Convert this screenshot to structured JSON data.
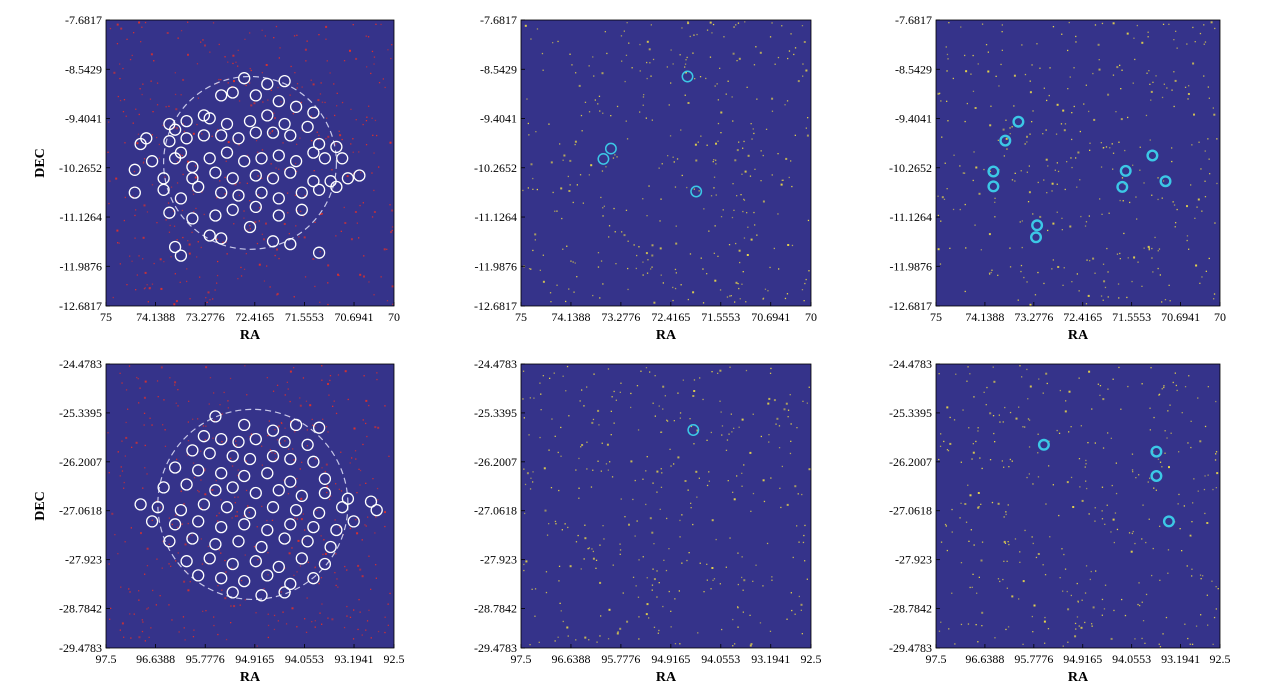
{
  "colors": {
    "background": "#35338a",
    "noise_red": "#e0302a",
    "noise_yellow": "#e8d64a",
    "star_circle": "#ffffff",
    "match_circle": "#3cc8e6",
    "fov_dashed": "#c8c8e8"
  },
  "chart_data": [
    {
      "id": "top-left",
      "type": "scatter",
      "xlabel": "RA",
      "ylabel": "DEC",
      "xlim": [
        75,
        70
      ],
      "ylim": [
        -12.6817,
        -7.6817
      ],
      "xticks": [
        75,
        74.1388,
        73.2776,
        72.4165,
        71.5553,
        70.6941,
        70
      ],
      "xtick_labels": [
        "75",
        "74.1388",
        "73.2776",
        "72.4165",
        "71.5553",
        "70.6941",
        "70"
      ],
      "yticks": [
        -7.6817,
        -8.5429,
        -9.4041,
        -10.2652,
        -11.1264,
        -11.9876,
        -12.6817
      ],
      "ytick_labels": [
        "-7.6817",
        "-8.5429",
        "-9.4041",
        "-10.2652",
        "-11.1264",
        "-11.9876",
        "-12.6817"
      ],
      "noise_color": "red",
      "fov": {
        "center": [
          72.5,
          -10.18
        ],
        "radius_ra": 1.5
      },
      "circle_style": "white",
      "points": [
        [
          72.6,
          -8.7
        ],
        [
          72.2,
          -8.8
        ],
        [
          71.9,
          -8.75
        ],
        [
          73.0,
          -9.0
        ],
        [
          72.8,
          -8.95
        ],
        [
          72.4,
          -9.0
        ],
        [
          72.0,
          -9.1
        ],
        [
          71.7,
          -9.2
        ],
        [
          71.4,
          -9.3
        ],
        [
          73.3,
          -9.35
        ],
        [
          73.6,
          -9.45
        ],
        [
          73.9,
          -9.5
        ],
        [
          73.8,
          -9.6
        ],
        [
          73.2,
          -9.4
        ],
        [
          72.9,
          -9.5
        ],
        [
          72.5,
          -9.45
        ],
        [
          72.2,
          -9.35
        ],
        [
          71.9,
          -9.5
        ],
        [
          71.5,
          -9.55
        ],
        [
          74.3,
          -9.75
        ],
        [
          74.4,
          -9.85
        ],
        [
          73.9,
          -9.8
        ],
        [
          73.6,
          -9.75
        ],
        [
          73.3,
          -9.7
        ],
        [
          73.0,
          -9.7
        ],
        [
          72.7,
          -9.75
        ],
        [
          72.4,
          -9.65
        ],
        [
          72.1,
          -9.65
        ],
        [
          71.8,
          -9.7
        ],
        [
          71.3,
          -9.85
        ],
        [
          71.0,
          -9.9
        ],
        [
          74.2,
          -10.15
        ],
        [
          73.8,
          -10.1
        ],
        [
          73.7,
          -10.0
        ],
        [
          73.5,
          -10.25
        ],
        [
          73.2,
          -10.1
        ],
        [
          72.9,
          -10.0
        ],
        [
          72.6,
          -10.15
        ],
        [
          72.3,
          -10.1
        ],
        [
          72.0,
          -10.05
        ],
        [
          71.7,
          -10.15
        ],
        [
          71.4,
          -10.0
        ],
        [
          71.2,
          -10.1
        ],
        [
          70.9,
          -10.1
        ],
        [
          74.5,
          -10.3
        ],
        [
          74.0,
          -10.45
        ],
        [
          73.5,
          -10.45
        ],
        [
          73.1,
          -10.35
        ],
        [
          72.8,
          -10.45
        ],
        [
          72.4,
          -10.4
        ],
        [
          72.1,
          -10.45
        ],
        [
          71.8,
          -10.35
        ],
        [
          71.4,
          -10.5
        ],
        [
          71.1,
          -10.5
        ],
        [
          70.8,
          -10.45
        ],
        [
          70.6,
          -10.4
        ],
        [
          74.5,
          -10.7
        ],
        [
          74.0,
          -10.65
        ],
        [
          73.7,
          -10.8
        ],
        [
          73.4,
          -10.6
        ],
        [
          73.0,
          -10.7
        ],
        [
          72.7,
          -10.75
        ],
        [
          72.3,
          -10.7
        ],
        [
          72.0,
          -10.8
        ],
        [
          71.6,
          -10.7
        ],
        [
          71.3,
          -10.65
        ],
        [
          71.0,
          -10.6
        ],
        [
          73.9,
          -11.05
        ],
        [
          73.5,
          -11.15
        ],
        [
          73.1,
          -11.1
        ],
        [
          72.8,
          -11.0
        ],
        [
          72.4,
          -10.95
        ],
        [
          72.0,
          -11.1
        ],
        [
          71.6,
          -11.0
        ],
        [
          73.2,
          -11.45
        ],
        [
          73.0,
          -11.5
        ],
        [
          72.5,
          -11.3
        ],
        [
          72.1,
          -11.55
        ],
        [
          71.8,
          -11.6
        ],
        [
          71.3,
          -11.75
        ],
        [
          73.8,
          -11.65
        ],
        [
          73.7,
          -11.8
        ]
      ]
    },
    {
      "id": "top-middle",
      "type": "scatter",
      "xlabel": "RA",
      "ylabel": "",
      "xlim": [
        75,
        70
      ],
      "ylim": [
        -12.6817,
        -7.6817
      ],
      "xticks": [
        75,
        74.1388,
        73.2776,
        72.4165,
        71.5553,
        70.6941,
        70
      ],
      "xtick_labels": [
        "75",
        "74.1388",
        "73.2776",
        "72.4165",
        "71.5553",
        "70.6941",
        "70"
      ],
      "yticks": [
        -7.6817,
        -8.5429,
        -9.4041,
        -10.2652,
        -11.1264,
        -11.9876,
        -12.6817
      ],
      "ytick_labels": [
        "-7.6817",
        "-8.5429",
        "-9.4041",
        "-10.2652",
        "-11.1264",
        "-11.9876",
        "-12.6817"
      ],
      "noise_color": "yellow",
      "circle_style": "cyan",
      "points": [
        [
          72.13,
          -8.67
        ],
        [
          73.45,
          -9.93
        ],
        [
          73.58,
          -10.11
        ],
        [
          71.98,
          -10.68
        ]
      ]
    },
    {
      "id": "top-right",
      "type": "scatter",
      "xlabel": "RA",
      "ylabel": "",
      "xlim": [
        75,
        70
      ],
      "ylim": [
        -12.6817,
        -7.6817
      ],
      "xticks": [
        75,
        74.1388,
        73.2776,
        72.4165,
        71.5553,
        70.6941,
        70
      ],
      "xtick_labels": [
        "75",
        "74.1388",
        "73.2776",
        "72.4165",
        "71.5553",
        "70.6941",
        "70"
      ],
      "yticks": [
        -7.6817,
        -8.5429,
        -9.4041,
        -10.2652,
        -11.1264,
        -11.9876,
        -12.6817
      ],
      "ytick_labels": [
        "-7.6817",
        "-8.5429",
        "-9.4041",
        "-10.2652",
        "-11.1264",
        "-11.9876",
        "-12.6817"
      ],
      "noise_color": "yellow",
      "circle_style": "cyan-thick",
      "points": [
        [
          73.55,
          -9.46
        ],
        [
          73.78,
          -9.79
        ],
        [
          73.99,
          -10.33
        ],
        [
          73.99,
          -10.59
        ],
        [
          73.22,
          -11.27
        ],
        [
          73.24,
          -11.48
        ],
        [
          71.66,
          -10.32
        ],
        [
          71.72,
          -10.6
        ],
        [
          71.19,
          -10.05
        ],
        [
          70.96,
          -10.5
        ]
      ]
    },
    {
      "id": "bottom-left",
      "type": "scatter",
      "xlabel": "RA",
      "ylabel": "DEC",
      "xlim": [
        97.5,
        92.5
      ],
      "ylim": [
        -29.4783,
        -24.4783
      ],
      "xticks": [
        97.5,
        96.6388,
        95.7776,
        94.9165,
        94.0553,
        93.1941,
        92.5
      ],
      "xtick_labels": [
        "97.5",
        "96.6388",
        "95.7776",
        "94.9165",
        "94.0553",
        "93.1941",
        "92.5"
      ],
      "yticks": [
        -24.4783,
        -25.3395,
        -26.2007,
        -27.0618,
        -27.923,
        -28.7842,
        -29.4783
      ],
      "ytick_labels": [
        "-24.4783",
        "-25.3395",
        "-26.2007",
        "-27.0618",
        "-27.923",
        "-28.7842",
        "-29.4783"
      ],
      "noise_color": "red",
      "fov": {
        "center": [
          94.95,
          -26.95
        ],
        "radius_ra": 1.65
      },
      "circle_style": "white",
      "points": [
        [
          95.6,
          -25.4
        ],
        [
          95.1,
          -25.55
        ],
        [
          94.6,
          -25.65
        ],
        [
          94.2,
          -25.55
        ],
        [
          93.8,
          -25.6
        ],
        [
          95.8,
          -25.75
        ],
        [
          95.5,
          -25.8
        ],
        [
          95.2,
          -25.85
        ],
        [
          94.9,
          -25.8
        ],
        [
          94.4,
          -25.85
        ],
        [
          94.0,
          -25.9
        ],
        [
          96.0,
          -26.0
        ],
        [
          95.7,
          -26.05
        ],
        [
          95.3,
          -26.1
        ],
        [
          95.0,
          -26.15
        ],
        [
          94.6,
          -26.1
        ],
        [
          94.3,
          -26.15
        ],
        [
          93.9,
          -26.2
        ],
        [
          96.3,
          -26.3
        ],
        [
          95.9,
          -26.35
        ],
        [
          95.5,
          -26.4
        ],
        [
          95.1,
          -26.45
        ],
        [
          94.7,
          -26.4
        ],
        [
          94.3,
          -26.55
        ],
        [
          93.7,
          -26.5
        ],
        [
          96.5,
          -26.65
        ],
        [
          96.1,
          -26.6
        ],
        [
          95.6,
          -26.7
        ],
        [
          95.3,
          -26.65
        ],
        [
          94.9,
          -26.75
        ],
        [
          94.5,
          -26.7
        ],
        [
          94.1,
          -26.8
        ],
        [
          93.7,
          -26.75
        ],
        [
          93.3,
          -26.85
        ],
        [
          92.9,
          -26.9
        ],
        [
          96.9,
          -26.95
        ],
        [
          96.6,
          -27.0
        ],
        [
          96.2,
          -27.05
        ],
        [
          95.8,
          -26.95
        ],
        [
          95.4,
          -27.0
        ],
        [
          95.0,
          -27.1
        ],
        [
          94.6,
          -27.0
        ],
        [
          94.2,
          -27.05
        ],
        [
          93.8,
          -27.1
        ],
        [
          93.4,
          -27.0
        ],
        [
          92.8,
          -27.05
        ],
        [
          96.7,
          -27.25
        ],
        [
          96.3,
          -27.3
        ],
        [
          95.9,
          -27.25
        ],
        [
          95.5,
          -27.35
        ],
        [
          95.1,
          -27.3
        ],
        [
          94.7,
          -27.4
        ],
        [
          94.3,
          -27.3
        ],
        [
          93.9,
          -27.35
        ],
        [
          93.5,
          -27.4
        ],
        [
          93.2,
          -27.25
        ],
        [
          96.4,
          -27.6
        ],
        [
          96.0,
          -27.55
        ],
        [
          95.6,
          -27.65
        ],
        [
          95.2,
          -27.6
        ],
        [
          94.8,
          -27.7
        ],
        [
          94.4,
          -27.55
        ],
        [
          94.0,
          -27.6
        ],
        [
          93.6,
          -27.7
        ],
        [
          96.1,
          -27.95
        ],
        [
          95.7,
          -27.9
        ],
        [
          95.3,
          -28.0
        ],
        [
          94.9,
          -27.95
        ],
        [
          94.5,
          -28.05
        ],
        [
          94.1,
          -27.9
        ],
        [
          93.7,
          -28.0
        ],
        [
          95.9,
          -28.2
        ],
        [
          95.5,
          -28.25
        ],
        [
          95.1,
          -28.3
        ],
        [
          94.7,
          -28.2
        ],
        [
          94.3,
          -28.35
        ],
        [
          93.9,
          -28.25
        ],
        [
          95.3,
          -28.5
        ],
        [
          94.8,
          -28.55
        ],
        [
          94.4,
          -28.5
        ]
      ]
    },
    {
      "id": "bottom-middle",
      "type": "scatter",
      "xlabel": "RA",
      "ylabel": "",
      "xlim": [
        97.5,
        92.5
      ],
      "ylim": [
        -29.4783,
        -24.4783
      ],
      "xticks": [
        97.5,
        96.6388,
        95.7776,
        94.9165,
        94.0553,
        93.1941,
        92.5
      ],
      "xtick_labels": [
        "97.5",
        "96.6388",
        "95.7776",
        "94.9165",
        "94.0553",
        "93.1941",
        "92.5"
      ],
      "yticks": [
        -24.4783,
        -25.3395,
        -26.2007,
        -27.0618,
        -27.923,
        -28.7842,
        -29.4783
      ],
      "ytick_labels": [
        "-24.4783",
        "-25.3395",
        "-26.2007",
        "-27.0618",
        "-27.923",
        "-28.7842",
        "-29.4783"
      ],
      "noise_color": "yellow",
      "circle_style": "cyan",
      "points": [
        [
          94.53,
          -25.64
        ]
      ]
    },
    {
      "id": "bottom-right",
      "type": "scatter",
      "xlabel": "RA",
      "ylabel": "",
      "xlim": [
        97.5,
        92.5
      ],
      "ylim": [
        -29.4783,
        -24.4783
      ],
      "xticks": [
        97.5,
        96.6388,
        95.7776,
        94.9165,
        94.0553,
        93.1941,
        92.5
      ],
      "xtick_labels": [
        "97.5",
        "96.6388",
        "95.7776",
        "94.9165",
        "94.0553",
        "93.1941",
        "92.5"
      ],
      "yticks": [
        -24.4783,
        -25.3395,
        -26.2007,
        -27.0618,
        -27.923,
        -28.7842,
        -29.4783
      ],
      "ytick_labels": [
        "-24.4783",
        "-25.3395",
        "-26.2007",
        "-27.0618",
        "-27.923",
        "-28.7842",
        "-29.4783"
      ],
      "noise_color": "yellow",
      "circle_style": "cyan-thick",
      "points": [
        [
          95.6,
          -25.9
        ],
        [
          93.62,
          -26.02
        ],
        [
          93.62,
          -26.45
        ],
        [
          93.4,
          -27.25
        ]
      ]
    }
  ]
}
